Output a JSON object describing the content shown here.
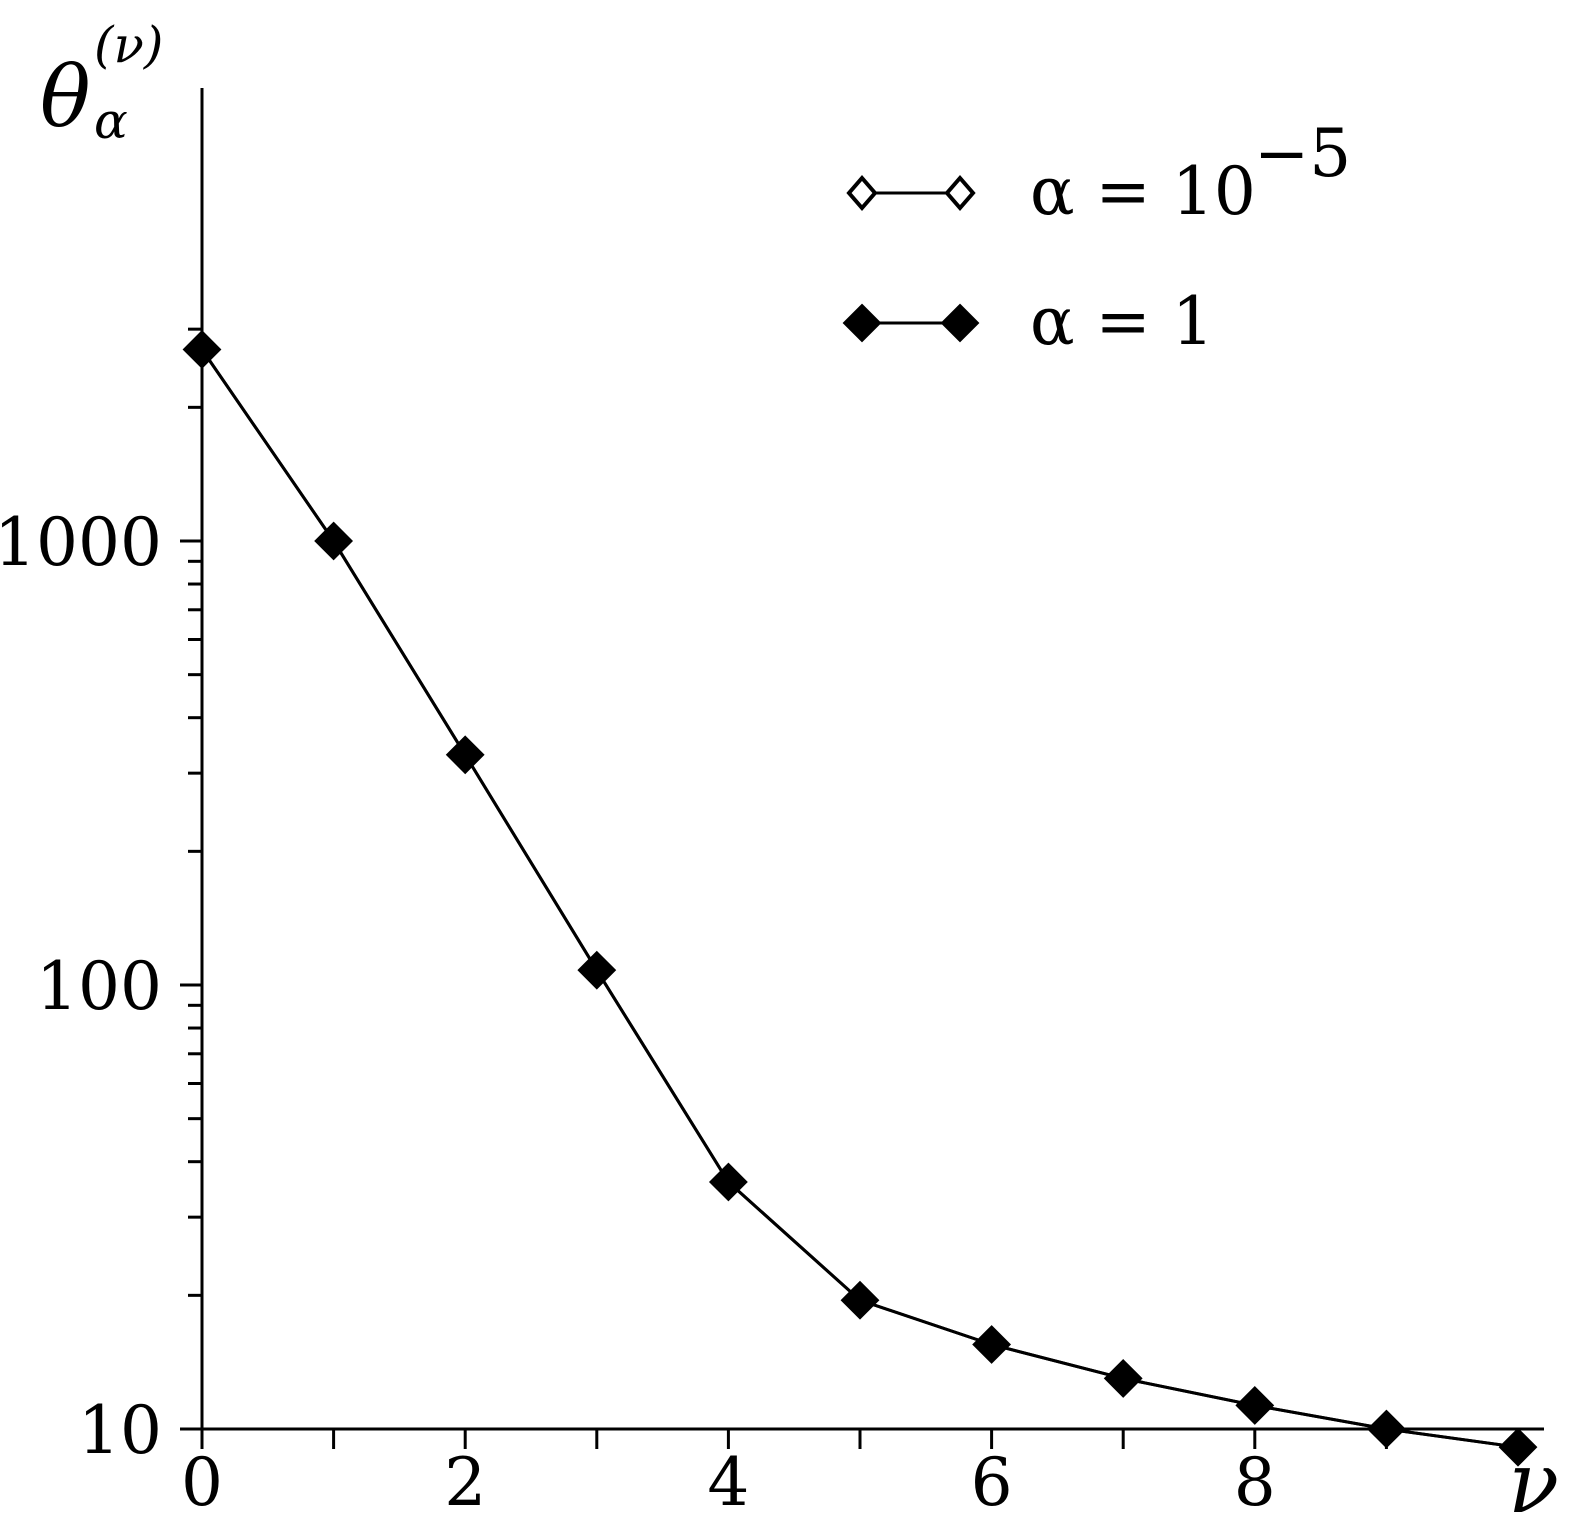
{
  "chart_data": {
    "type": "line",
    "xlabel": "ν",
    "ylabel": "θ",
    "ylabel_superscript": "(ν)",
    "ylabel_subscript": "α",
    "x_scale": "linear",
    "y_scale": "log",
    "xlim": [
      0,
      10
    ],
    "ylim": [
      10,
      3650
    ],
    "x_ticks": [
      0,
      2,
      4,
      6,
      8
    ],
    "x_tick_labels": [
      "0",
      "2",
      "4",
      "6",
      "8"
    ],
    "y_ticks": [
      10,
      100,
      1000
    ],
    "y_tick_labels": [
      "10",
      "100",
      "1000"
    ],
    "grid": false,
    "legend_position": "top-right",
    "series": [
      {
        "name": "α = 10",
        "name_superscript": "−5",
        "marker": "hollow-diamond",
        "x": [
          0,
          1,
          2,
          3,
          4,
          5,
          6,
          7,
          8,
          9,
          10
        ],
        "values": [
          2700,
          1000,
          330,
          108,
          36,
          19.5,
          15.5,
          13,
          11.3,
          10,
          9.1
        ]
      },
      {
        "name": "α = 1",
        "marker": "filled-diamond",
        "x": [
          0,
          1,
          2,
          3,
          4,
          5,
          6,
          7,
          8,
          9,
          10
        ],
        "values": [
          2700,
          1000,
          330,
          108,
          36,
          19.5,
          15.5,
          13,
          11.3,
          10,
          9.1
        ]
      }
    ],
    "color": "#000000"
  }
}
